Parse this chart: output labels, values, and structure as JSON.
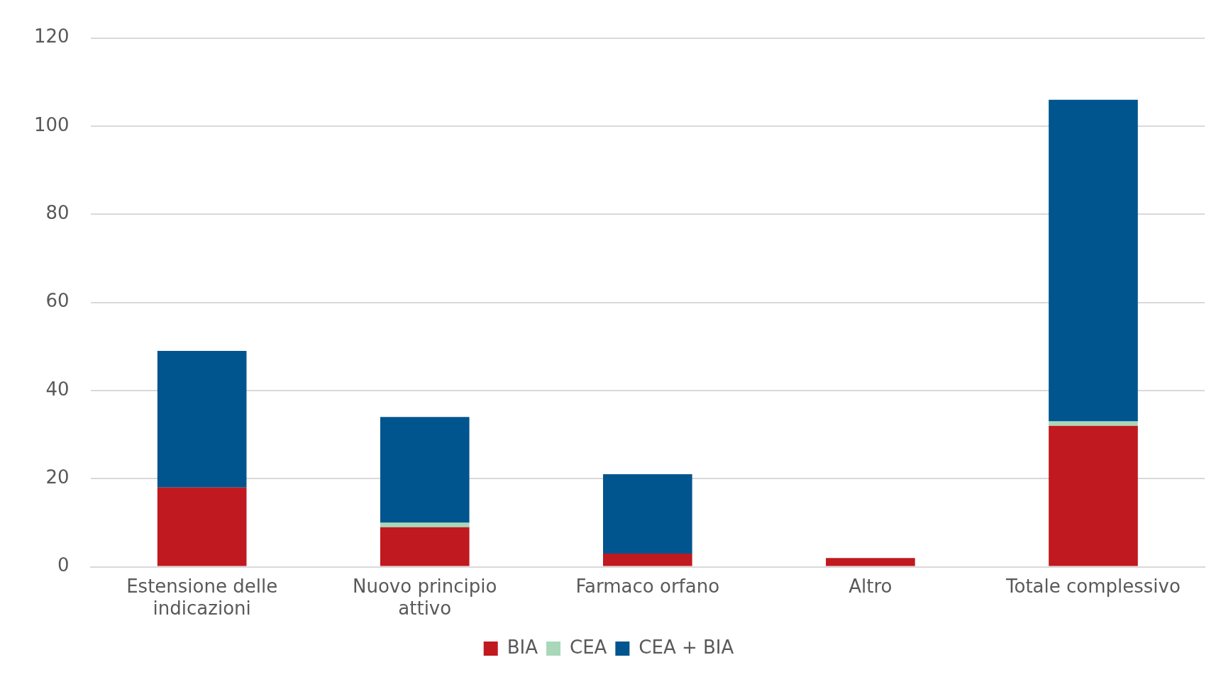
{
  "chart_data": {
    "type": "bar",
    "stacked": true,
    "categories": [
      "Estensione delle indicazioni",
      "Nuovo principio attivo",
      "Farmaco orfano",
      "Altro",
      "Totale complessivo"
    ],
    "series": [
      {
        "name": "BIA",
        "color": "#c0191f",
        "values": [
          18,
          9,
          3,
          2,
          32
        ]
      },
      {
        "name": "CEA",
        "color": "#a8d8b9",
        "values": [
          0,
          1,
          0,
          0,
          1
        ]
      },
      {
        "name": "CEA + BIA",
        "color": "#00558f",
        "values": [
          31,
          24,
          18,
          0,
          73
        ]
      }
    ],
    "ylim": [
      0,
      120
    ],
    "yticks": [
      0,
      20,
      40,
      60,
      80,
      100,
      120
    ],
    "grid": "y",
    "legend": "bottom"
  }
}
